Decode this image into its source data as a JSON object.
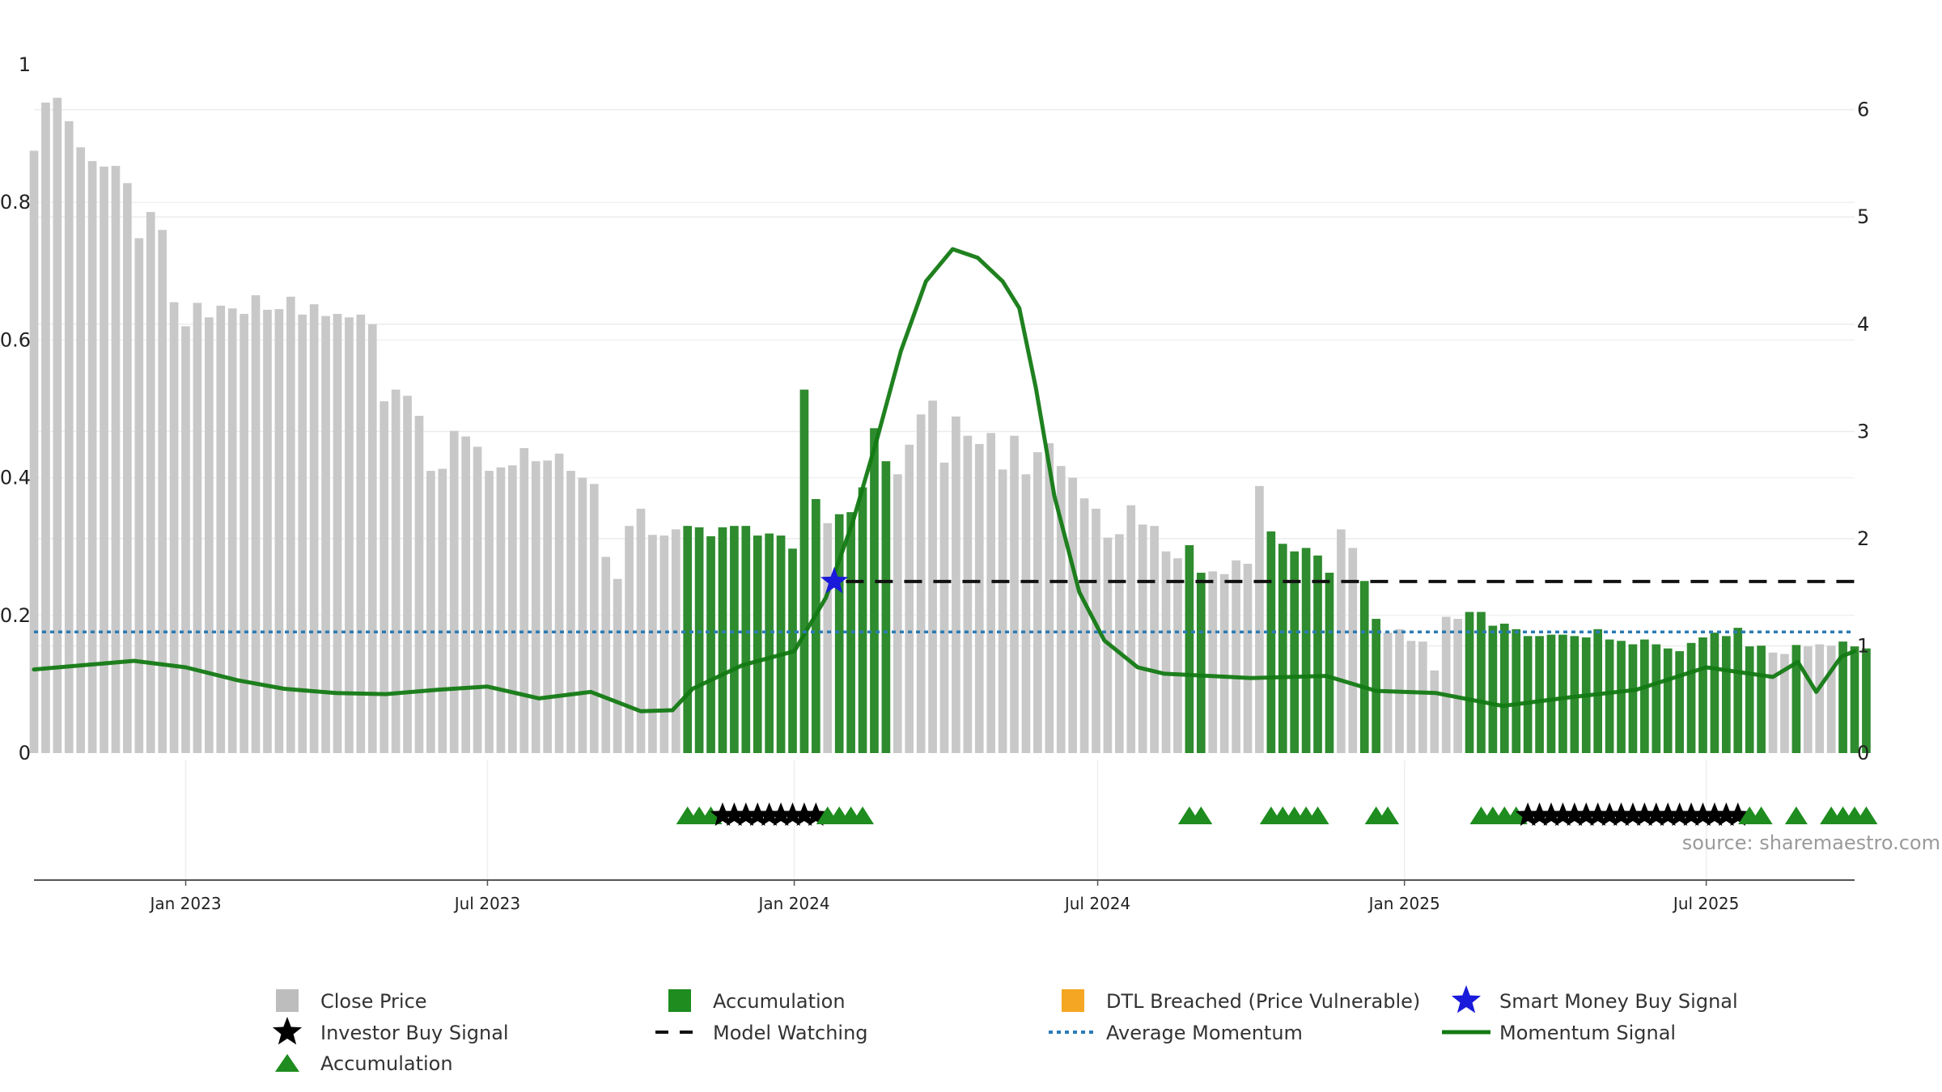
{
  "chart_data": {
    "type": "bar",
    "axes": {
      "left_y": {
        "range": [
          0,
          1
        ],
        "ticks": [
          "0",
          "0.2",
          "0.4",
          "0.6",
          "0.8",
          "1"
        ],
        "tick_values": [
          0,
          0.2,
          0.4,
          0.6,
          0.8,
          1
        ]
      },
      "right_y": {
        "range": [
          0,
          6.42
        ],
        "ticks": [
          "0",
          "1",
          "2",
          "3",
          "4",
          "5",
          "6"
        ],
        "tick_values": [
          0,
          1,
          2,
          3,
          4,
          5,
          6
        ]
      },
      "x": {
        "range": [
          "2022-10-02",
          "2025-09-28"
        ],
        "ticks": [
          {
            "date": "2023-01-01",
            "label": "Jan 2023"
          },
          {
            "date": "2023-07-01",
            "label": "Jul 2023"
          },
          {
            "date": "2024-01-01",
            "label": "Jan 2024"
          },
          {
            "date": "2024-07-01",
            "label": "Jul 2024"
          },
          {
            "date": "2025-01-01",
            "label": "Jan 2025"
          },
          {
            "date": "2025-07-01",
            "label": "Jul 2025"
          }
        ]
      }
    },
    "grid": true,
    "bar_series": {
      "name": "Close Price",
      "start_date": "2022-10-02",
      "interval": "weekly",
      "values": [
        0.875,
        0.945,
        0.952,
        0.918,
        0.88,
        0.86,
        0.852,
        0.853,
        0.828,
        0.748,
        0.786,
        0.76,
        0.655,
        0.62,
        0.654,
        0.633,
        0.65,
        0.646,
        0.638,
        0.665,
        0.644,
        0.645,
        0.663,
        0.637,
        0.652,
        0.635,
        0.638,
        0.633,
        0.637,
        0.623,
        0.511,
        0.528,
        0.519,
        0.49,
        0.41,
        0.413,
        0.468,
        0.46,
        0.445,
        0.41,
        0.415,
        0.418,
        0.443,
        0.424,
        0.425,
        0.435,
        0.41,
        0.4,
        0.391,
        0.285,
        0.253,
        0.33,
        0.355,
        0.317,
        0.316,
        0.325,
        0.33,
        0.328,
        0.315,
        0.328,
        0.33,
        0.33,
        0.316,
        0.319,
        0.316,
        0.297,
        0.528,
        0.369,
        0.334,
        0.347,
        0.35,
        0.386,
        0.472,
        0.424,
        0.405,
        0.448,
        0.492,
        0.512,
        0.422,
        0.489,
        0.461,
        0.449,
        0.465,
        0.412,
        0.461,
        0.405,
        0.437,
        0.45,
        0.417,
        0.4,
        0.37,
        0.355,
        0.313,
        0.318,
        0.36,
        0.332,
        0.33,
        0.293,
        0.283,
        0.302,
        0.262,
        0.264,
        0.26,
        0.28,
        0.275,
        0.388,
        0.322,
        0.304,
        0.293,
        0.298,
        0.287,
        0.262,
        0.325,
        0.298,
        0.25,
        0.195,
        0.175,
        0.18,
        0.163,
        0.162,
        0.12,
        0.198,
        0.195,
        0.205,
        0.205,
        0.185,
        0.188,
        0.18,
        0.17,
        0.17,
        0.172,
        0.172,
        0.17,
        0.168,
        0.18,
        0.165,
        0.163,
        0.158,
        0.165,
        0.158,
        0.152,
        0.148,
        0.16,
        0.168,
        0.175,
        0.17,
        0.182,
        0.155,
        0.156,
        0.146,
        0.144,
        0.157,
        0.155,
        0.158,
        0.156,
        0.162,
        0.155,
        0.152
      ],
      "accumulation_weeks": [
        56,
        57,
        58,
        59,
        60,
        61,
        62,
        63,
        64,
        65,
        66,
        67,
        69,
        70,
        71,
        72,
        73,
        99,
        100,
        106,
        107,
        108,
        109,
        110,
        111,
        114,
        115,
        123,
        124,
        125,
        126,
        127,
        128,
        129,
        130,
        131,
        132,
        133,
        134,
        135,
        136,
        137,
        138,
        139,
        140,
        141,
        142,
        143,
        144,
        145,
        146,
        147,
        148,
        151,
        155,
        156,
        157
      ],
      "colors": {
        "default": "#c8c8c8",
        "accumulation": "#2e8b2e"
      }
    },
    "lines": [
      {
        "name": "Momentum Signal",
        "axis": "right_y",
        "color": "#137a13",
        "points": [
          [
            "2022-10-02",
            0.78
          ],
          [
            "2022-11-01",
            0.82
          ],
          [
            "2022-12-01",
            0.86
          ],
          [
            "2023-01-01",
            0.8
          ],
          [
            "2023-02-01",
            0.68
          ],
          [
            "2023-03-01",
            0.6
          ],
          [
            "2023-04-01",
            0.56
          ],
          [
            "2023-05-01",
            0.55
          ],
          [
            "2023-06-01",
            0.59
          ],
          [
            "2023-07-01",
            0.62
          ],
          [
            "2023-08-01",
            0.51
          ],
          [
            "2023-09-01",
            0.57
          ],
          [
            "2023-10-01",
            0.39
          ],
          [
            "2023-10-20",
            0.4
          ],
          [
            "2023-11-01",
            0.6
          ],
          [
            "2023-12-01",
            0.82
          ],
          [
            "2024-01-01",
            0.95
          ],
          [
            "2024-01-20",
            1.45
          ],
          [
            "2024-02-05",
            2.15
          ],
          [
            "2024-02-20",
            2.95
          ],
          [
            "2024-03-05",
            3.75
          ],
          [
            "2024-03-20",
            4.4
          ],
          [
            "2024-04-05",
            4.7
          ],
          [
            "2024-04-20",
            4.62
          ],
          [
            "2024-05-05",
            4.4
          ],
          [
            "2024-05-15",
            4.15
          ],
          [
            "2024-05-25",
            3.4
          ],
          [
            "2024-06-05",
            2.4
          ],
          [
            "2024-06-20",
            1.5
          ],
          [
            "2024-07-05",
            1.05
          ],
          [
            "2024-07-25",
            0.8
          ],
          [
            "2024-08-10",
            0.74
          ],
          [
            "2024-10-01",
            0.7
          ],
          [
            "2024-11-15",
            0.72
          ],
          [
            "2024-12-15",
            0.58
          ],
          [
            "2025-01-20",
            0.56
          ],
          [
            "2025-03-01",
            0.44
          ],
          [
            "2025-04-10",
            0.52
          ],
          [
            "2025-05-20",
            0.59
          ],
          [
            "2025-07-01",
            0.8
          ],
          [
            "2025-08-10",
            0.71
          ],
          [
            "2025-08-25",
            0.85
          ],
          [
            "2025-09-05",
            0.57
          ],
          [
            "2025-09-20",
            0.9
          ],
          [
            "2025-09-28",
            0.95
          ]
        ]
      },
      {
        "name": "Average Momentum",
        "axis": "right_y",
        "style": "dotted",
        "color": "#2c7bb6",
        "value": 1.13,
        "from": "2022-10-02",
        "to": "2025-09-28"
      },
      {
        "name": "Model Watching",
        "axis": "right_y",
        "style": "dashed",
        "color": "#111111",
        "value": 1.6,
        "from": "2024-02-01",
        "to": "2025-09-28"
      }
    ],
    "markers": {
      "smart_money_buy": {
        "name": "Smart Money Buy Signal",
        "color": "#1a1adb",
        "points": [
          [
            "2024-01-25",
            1.6
          ]
        ]
      },
      "signal_row_weeks": [
        56,
        57,
        58,
        59,
        60,
        61,
        62,
        63,
        64,
        65,
        66,
        67,
        68,
        69,
        70,
        71,
        99,
        100,
        106,
        107,
        108,
        109,
        110,
        115,
        116,
        124,
        125,
        126,
        127,
        128,
        129,
        130,
        131,
        132,
        133,
        134,
        135,
        136,
        137,
        138,
        139,
        140,
        141,
        142,
        143,
        144,
        145,
        146,
        147,
        148,
        151,
        154,
        155,
        156,
        157
      ],
      "investor_buy_weeks": [
        59,
        60,
        61,
        62,
        63,
        64,
        65,
        66,
        67,
        128,
        129,
        130,
        131,
        132,
        133,
        134,
        135,
        136,
        137,
        138,
        139,
        140,
        141,
        142,
        143,
        144,
        145,
        146
      ]
    },
    "legend": {
      "placement": "bottom",
      "items": [
        {
          "label": "Close Price",
          "symbol": "square",
          "color": "#bdbdbd"
        },
        {
          "label": "Accumulation",
          "symbol": "square",
          "color": "#1e8c1e"
        },
        {
          "label": "DTL Breached (Price Vulnerable)",
          "symbol": "square",
          "color": "#f5a623"
        },
        {
          "label": "Smart Money Buy Signal",
          "symbol": "star",
          "color": "#1a1adb"
        },
        {
          "label": "Investor Buy Signal",
          "symbol": "star",
          "color": "#000000"
        },
        {
          "label": "Model Watching",
          "symbol": "dashed",
          "color": "#111111"
        },
        {
          "label": "Average Momentum",
          "symbol": "dotted",
          "color": "#2c7bb6"
        },
        {
          "label": "Momentum Signal",
          "symbol": "line",
          "color": "#137a13"
        },
        {
          "label": "Accumulation",
          "symbol": "triangle",
          "color": "#1e8c1e"
        }
      ]
    },
    "annotations": [
      {
        "text": "source: sharemaestro.com"
      }
    ]
  }
}
